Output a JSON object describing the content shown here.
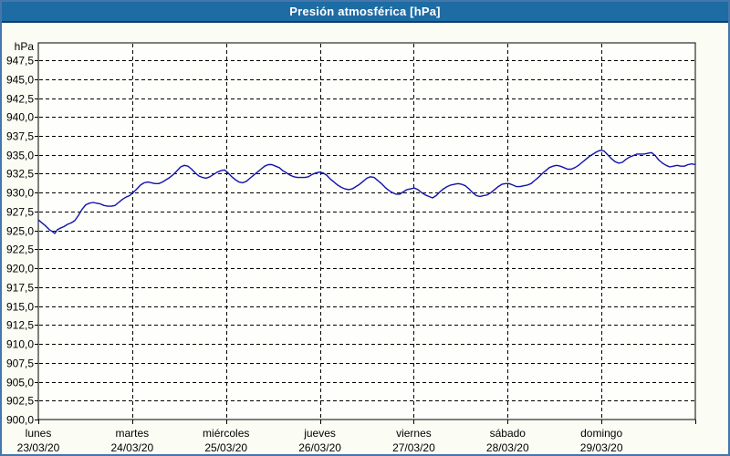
{
  "window": {
    "title": "Presión atmosférica [hPa]"
  },
  "colors": {
    "titlebar_bg": "#1E6CA4",
    "titlebar_underline": "#0D3D6E",
    "titlebar_text": "#FFFFFF",
    "window_border": "#4576AC",
    "window_bg": "#FBFCF4",
    "plot_bg": "#FEFEFB",
    "grid": "#000000",
    "axis": "#000000",
    "line": "#1313AA",
    "label_text": "#000000"
  },
  "chart_data": {
    "type": "line",
    "title": "Presión atmosférica [hPa]",
    "y_unit_label": "hPa",
    "ylabel": "Presión atmosférica",
    "xlabel": "",
    "ylim": [
      900.0,
      949.8
    ],
    "grid": "dashed",
    "legend_position": "none",
    "x_total_days": 7,
    "yticks": [
      {
        "value": 947.5,
        "label": "947,5"
      },
      {
        "value": 945.0,
        "label": "945,0"
      },
      {
        "value": 942.5,
        "label": "942,5"
      },
      {
        "value": 940.0,
        "label": "940,0"
      },
      {
        "value": 937.5,
        "label": "937,5"
      },
      {
        "value": 935.0,
        "label": "935,0"
      },
      {
        "value": 932.5,
        "label": "932,5"
      },
      {
        "value": 930.0,
        "label": "930,0"
      },
      {
        "value": 927.5,
        "label": "927,5"
      },
      {
        "value": 925.0,
        "label": "925,0"
      },
      {
        "value": 922.5,
        "label": "922,5"
      },
      {
        "value": 920.0,
        "label": "920,0"
      },
      {
        "value": 917.5,
        "label": "917,5"
      },
      {
        "value": 915.0,
        "label": "915,0"
      },
      {
        "value": 912.5,
        "label": "912,5"
      },
      {
        "value": 910.0,
        "label": "910,0"
      },
      {
        "value": 907.5,
        "label": "907,5"
      },
      {
        "value": 905.0,
        "label": "905,0"
      },
      {
        "value": 902.5,
        "label": "902,5"
      },
      {
        "value": 900.0,
        "label": "900,0"
      }
    ],
    "days": [
      {
        "weekday": "lunes",
        "date": "23/03/20"
      },
      {
        "weekday": "martes",
        "date": "24/03/20"
      },
      {
        "weekday": "miércoles",
        "date": "25/03/20"
      },
      {
        "weekday": "jueves",
        "date": "26/03/20"
      },
      {
        "weekday": "viernes",
        "date": "27/03/20"
      },
      {
        "weekday": "sábado",
        "date": "28/03/20"
      },
      {
        "weekday": "domingo",
        "date": "29/03/20"
      }
    ],
    "series": [
      {
        "name": "Presión atmosférica [hPa]",
        "color": "#1313AA",
        "points": [
          [
            0.0,
            926.4
          ],
          [
            0.039,
            926.0
          ],
          [
            0.078,
            925.6
          ],
          [
            0.117,
            925.1
          ],
          [
            0.156,
            924.8
          ],
          [
            0.175,
            924.6
          ],
          [
            0.204,
            925.1
          ],
          [
            0.233,
            925.3
          ],
          [
            0.272,
            925.5
          ],
          [
            0.311,
            925.8
          ],
          [
            0.35,
            926.0
          ],
          [
            0.389,
            926.3
          ],
          [
            0.428,
            927.0
          ],
          [
            0.467,
            927.8
          ],
          [
            0.506,
            928.4
          ],
          [
            0.544,
            928.6
          ],
          [
            0.583,
            928.7
          ],
          [
            0.622,
            928.6
          ],
          [
            0.661,
            928.5
          ],
          [
            0.7,
            928.3
          ],
          [
            0.739,
            928.2
          ],
          [
            0.778,
            928.2
          ],
          [
            0.817,
            928.3
          ],
          [
            0.856,
            928.7
          ],
          [
            0.894,
            929.1
          ],
          [
            0.933,
            929.4
          ],
          [
            0.972,
            929.6
          ],
          [
            1.001,
            929.9
          ],
          [
            1.05,
            930.5
          ],
          [
            1.089,
            931.0
          ],
          [
            1.128,
            931.3
          ],
          [
            1.167,
            931.4
          ],
          [
            1.206,
            931.3
          ],
          [
            1.244,
            931.2
          ],
          [
            1.283,
            931.2
          ],
          [
            1.322,
            931.4
          ],
          [
            1.361,
            931.7
          ],
          [
            1.4,
            932.0
          ],
          [
            1.439,
            932.4
          ],
          [
            1.478,
            932.9
          ],
          [
            1.517,
            933.4
          ],
          [
            1.556,
            933.6
          ],
          [
            1.594,
            933.5
          ],
          [
            1.633,
            933.1
          ],
          [
            1.672,
            932.6
          ],
          [
            1.711,
            932.2
          ],
          [
            1.75,
            932.0
          ],
          [
            1.789,
            931.9
          ],
          [
            1.828,
            932.1
          ],
          [
            1.867,
            932.4
          ],
          [
            1.906,
            932.7
          ],
          [
            1.944,
            932.9
          ],
          [
            1.983,
            933.0
          ],
          [
            2.022,
            932.6
          ],
          [
            2.061,
            932.1
          ],
          [
            2.1,
            931.7
          ],
          [
            2.139,
            931.4
          ],
          [
            2.178,
            931.3
          ],
          [
            2.217,
            931.5
          ],
          [
            2.256,
            931.9
          ],
          [
            2.294,
            932.3
          ],
          [
            2.333,
            932.7
          ],
          [
            2.372,
            933.1
          ],
          [
            2.411,
            933.5
          ],
          [
            2.45,
            933.7
          ],
          [
            2.489,
            933.7
          ],
          [
            2.528,
            933.5
          ],
          [
            2.567,
            933.3
          ],
          [
            2.606,
            932.9
          ],
          [
            2.644,
            932.6
          ],
          [
            2.683,
            932.3
          ],
          [
            2.722,
            932.1
          ],
          [
            2.761,
            932.0
          ],
          [
            2.8,
            932.0
          ],
          [
            2.839,
            932.0
          ],
          [
            2.878,
            932.1
          ],
          [
            2.917,
            932.4
          ],
          [
            2.956,
            932.6
          ],
          [
            2.994,
            932.7
          ],
          [
            3.033,
            932.6
          ],
          [
            3.072,
            932.3
          ],
          [
            3.111,
            931.8
          ],
          [
            3.15,
            931.4
          ],
          [
            3.189,
            931.0
          ],
          [
            3.228,
            930.7
          ],
          [
            3.267,
            930.5
          ],
          [
            3.306,
            930.4
          ],
          [
            3.344,
            930.5
          ],
          [
            3.383,
            930.8
          ],
          [
            3.422,
            931.1
          ],
          [
            3.461,
            931.5
          ],
          [
            3.5,
            931.9
          ],
          [
            3.539,
            932.1
          ],
          [
            3.578,
            932.0
          ],
          [
            3.617,
            931.6
          ],
          [
            3.656,
            931.2
          ],
          [
            3.694,
            930.7
          ],
          [
            3.733,
            930.3
          ],
          [
            3.772,
            930.0
          ],
          [
            3.811,
            929.8
          ],
          [
            3.85,
            929.8
          ],
          [
            3.889,
            930.1
          ],
          [
            3.928,
            930.4
          ],
          [
            3.967,
            930.5
          ],
          [
            4.006,
            930.6
          ],
          [
            4.044,
            930.4
          ],
          [
            4.083,
            930.0
          ],
          [
            4.122,
            929.7
          ],
          [
            4.161,
            929.5
          ],
          [
            4.2,
            929.3
          ],
          [
            4.239,
            929.6
          ],
          [
            4.278,
            930.1
          ],
          [
            4.317,
            930.5
          ],
          [
            4.356,
            930.8
          ],
          [
            4.394,
            931.0
          ],
          [
            4.433,
            931.1
          ],
          [
            4.472,
            931.2
          ],
          [
            4.511,
            931.1
          ],
          [
            4.55,
            930.9
          ],
          [
            4.589,
            930.5
          ],
          [
            4.628,
            930.0
          ],
          [
            4.667,
            929.6
          ],
          [
            4.706,
            929.5
          ],
          [
            4.744,
            929.6
          ],
          [
            4.783,
            929.7
          ],
          [
            4.822,
            930.0
          ],
          [
            4.861,
            930.4
          ],
          [
            4.9,
            930.8
          ],
          [
            4.939,
            931.1
          ],
          [
            4.978,
            931.2
          ],
          [
            5.017,
            931.2
          ],
          [
            5.056,
            931.0
          ],
          [
            5.094,
            930.8
          ],
          [
            5.133,
            930.8
          ],
          [
            5.172,
            930.9
          ],
          [
            5.211,
            931.0
          ],
          [
            5.25,
            931.2
          ],
          [
            5.289,
            931.6
          ],
          [
            5.328,
            932.0
          ],
          [
            5.367,
            932.5
          ],
          [
            5.406,
            932.9
          ],
          [
            5.444,
            933.3
          ],
          [
            5.483,
            933.5
          ],
          [
            5.522,
            933.6
          ],
          [
            5.561,
            933.5
          ],
          [
            5.6,
            933.3
          ],
          [
            5.639,
            933.1
          ],
          [
            5.678,
            933.1
          ],
          [
            5.717,
            933.3
          ],
          [
            5.756,
            933.6
          ],
          [
            5.794,
            934.0
          ],
          [
            5.833,
            934.4
          ],
          [
            5.872,
            934.8
          ],
          [
            5.911,
            935.1
          ],
          [
            5.95,
            935.4
          ],
          [
            5.989,
            935.6
          ],
          [
            6.028,
            935.5
          ],
          [
            6.067,
            935.0
          ],
          [
            6.106,
            934.5
          ],
          [
            6.144,
            934.1
          ],
          [
            6.183,
            933.9
          ],
          [
            6.222,
            934.0
          ],
          [
            6.261,
            934.4
          ],
          [
            6.3,
            934.7
          ],
          [
            6.339,
            934.9
          ],
          [
            6.378,
            935.1
          ],
          [
            6.417,
            935.1
          ],
          [
            6.456,
            935.1
          ],
          [
            6.494,
            935.2
          ],
          [
            6.533,
            935.3
          ],
          [
            6.572,
            934.9
          ],
          [
            6.611,
            934.3
          ],
          [
            6.65,
            933.9
          ],
          [
            6.689,
            933.6
          ],
          [
            6.728,
            933.4
          ],
          [
            6.767,
            933.5
          ],
          [
            6.806,
            933.6
          ],
          [
            6.844,
            933.5
          ],
          [
            6.883,
            933.5
          ],
          [
            6.922,
            933.7
          ],
          [
            6.961,
            933.8
          ],
          [
            7.0,
            933.7
          ]
        ]
      }
    ]
  }
}
